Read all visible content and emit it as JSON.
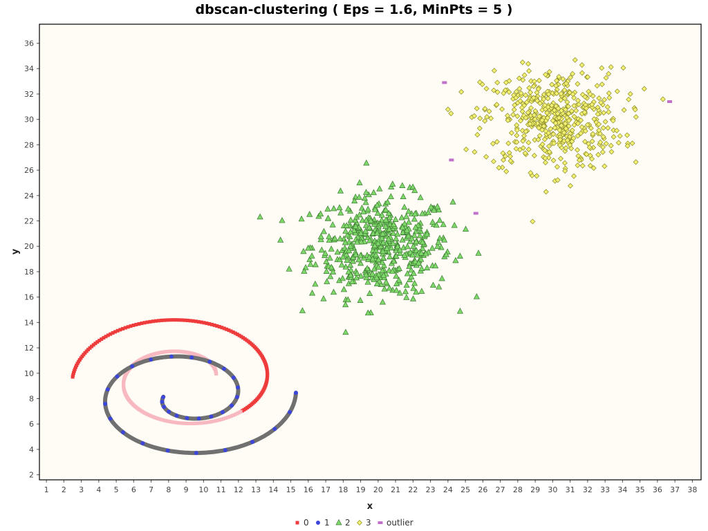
{
  "chart_data": {
    "type": "scatter",
    "title": "dbscan-clustering ( Eps = 1.6, MinPts = 5 )",
    "xlabel": "x",
    "ylabel": "y",
    "xlim": [
      0.6,
      38.5
    ],
    "ylim": [
      1.6,
      37.5
    ],
    "xticks": [
      1,
      2,
      3,
      4,
      5,
      6,
      7,
      8,
      9,
      10,
      11,
      12,
      13,
      14,
      15,
      16,
      17,
      18,
      19,
      20,
      21,
      22,
      23,
      24,
      25,
      26,
      27,
      28,
      29,
      30,
      31,
      32,
      33,
      34,
      35,
      36,
      37,
      38
    ],
    "yticks": [
      2,
      4,
      6,
      8,
      10,
      12,
      14,
      16,
      18,
      20,
      22,
      24,
      26,
      28,
      30,
      32,
      34,
      36
    ],
    "grid": false,
    "legend_position": "bottom",
    "colors": {
      "plot_background": "#fffcf6",
      "frame": "#000000",
      "cluster_0": "#ee3b3b",
      "cluster_0_faded": "#f7b8c0",
      "cluster_1": "#3c46d8",
      "cluster_1_track": "#707070",
      "cluster_2": "#7ed86a",
      "cluster_3": "#f2f070",
      "outlier": "#c070c8"
    },
    "series": [
      {
        "name": "0",
        "marker": "square",
        "shape": "spiral",
        "arc_center": [
          8.8,
          9.5
        ],
        "arc_radius_start": 6.3,
        "arc_radius_end": 2.0,
        "start_point": [
          2.5,
          9.2
        ],
        "end_point": [
          10.6,
          9.3
        ],
        "approx_count": 312
      },
      {
        "name": "1",
        "marker": "circle",
        "shape": "spiral",
        "arc_center": [
          9.0,
          8.2
        ],
        "arc_radius_start": 6.3,
        "arc_radius_end": 1.3,
        "start_point": [
          15.5,
          8.9
        ],
        "end_point": [
          7.5,
          9.0
        ],
        "approx_count": 312
      },
      {
        "name": "2",
        "marker": "triangle",
        "shape": "gaussian-blob",
        "center": [
          20.2,
          20.0
        ],
        "spread": [
          2.0,
          2.0
        ],
        "approx_count": 500
      },
      {
        "name": "3",
        "marker": "diamond",
        "shape": "gaussian-blob",
        "center": [
          30.0,
          30.0
        ],
        "spread": [
          2.0,
          2.0
        ],
        "approx_count": 500
      },
      {
        "name": "outlier",
        "marker": "bar",
        "points": [
          [
            23.8,
            32.9
          ],
          [
            24.2,
            26.8
          ],
          [
            25.6,
            22.6
          ],
          [
            36.7,
            31.4
          ]
        ]
      }
    ]
  }
}
